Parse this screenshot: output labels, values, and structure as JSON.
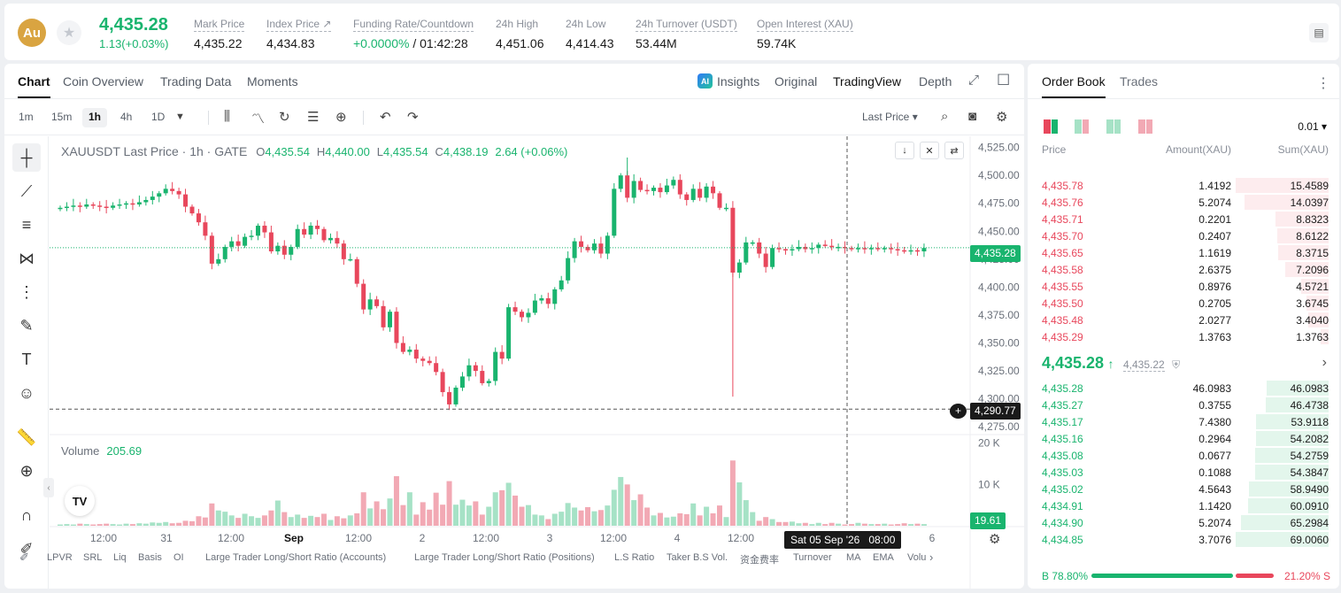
{
  "ticker": {
    "coin_badge": "Au",
    "last_price": "4,435.28",
    "change": "1.13(+0.03%)",
    "stats": [
      {
        "label": "Mark Price",
        "value": "4,435.22"
      },
      {
        "label": "Index Price ↗",
        "value": "4,434.83"
      },
      {
        "label": "Funding Rate/Countdown",
        "value_green": "+0.0000%",
        "value": " / 01:42:28"
      },
      {
        "label": "24h High",
        "value": "4,451.06"
      },
      {
        "label": "24h Low",
        "value": "4,414.43"
      },
      {
        "label": "24h Turnover (USDT)",
        "value": "53.44M"
      },
      {
        "label": "Open Interest (XAU)",
        "value": "59.74K"
      }
    ]
  },
  "chart_tabs": [
    "Chart",
    "Coin Overview",
    "Trading Data",
    "Moments"
  ],
  "view_tabs": {
    "insights": "Insights",
    "original": "Original",
    "tradingview": "TradingView",
    "depth": "Depth",
    "ai_badge": "AI"
  },
  "timeframes": [
    "1m",
    "15m",
    "1h",
    "4h",
    "1D"
  ],
  "price_source": "Last Price",
  "legend": {
    "title": "XAUUSDT Last Price · 1h · GATE",
    "o_label": "O",
    "o": "4,435.54",
    "h_label": "H",
    "h": "4,440.00",
    "l_label": "L",
    "l": "4,435.54",
    "c_label": "C",
    "c": "4,438.19",
    "change": "2.64 (+0.06%)"
  },
  "volume_legend": {
    "label": "Volume",
    "value": "205.69"
  },
  "price_chips": {
    "last": "4,435.28",
    "cursor": "4,290.77",
    "volume": "19.61"
  },
  "cursor_time": "Sat 05 Sep '26   08:00",
  "indicators": [
    "LPVR",
    "SRL",
    "Liq",
    "Basis",
    "OI",
    "Large Trader Long/Short Ratio (Accounts)",
    "Large Trader Long/Short Ratio (Positions)",
    "L.S Ratio",
    "Taker B.S Vol.",
    "资金费率",
    "Turnover",
    "MA",
    "EMA",
    "Volu"
  ],
  "chart_data": {
    "type": "candlestick",
    "symbol": "XAUUSDT",
    "interval": "1h",
    "y_ticks": [
      4525,
      4500,
      4475,
      4450,
      4425,
      4400,
      4375,
      4350,
      4325,
      4300,
      4275
    ],
    "y_tick_labels": [
      "4,525.00",
      "4,500.00",
      "4,475.00",
      "4,450.00",
      "4,425.00",
      "4,400.00",
      "4,375.00",
      "4,350.00",
      "4,325.00",
      "4,300.00",
      "4,275.00"
    ],
    "ylim": [
      4268,
      4535
    ],
    "volume_ticks": [
      "20 K",
      "10 K"
    ],
    "volume_tick_values": [
      20000,
      10000
    ],
    "x_tick_labels": [
      "12:00",
      "31",
      "12:00",
      "Sep",
      "12:00",
      "2",
      "12:00",
      "3",
      "12:00",
      "4",
      "12:00",
      "6"
    ],
    "last_price": 4435.28,
    "cursor_price": 4290.77,
    "closes": [
      4471,
      4472,
      4473,
      4472,
      4474,
      4473,
      4472,
      4471,
      4473,
      4474,
      4475,
      4474,
      4476,
      4478,
      4481,
      4484,
      4488,
      4486,
      4483,
      4472,
      4466,
      4458,
      4446,
      4421,
      4425,
      4436,
      4441,
      4437,
      4445,
      4446,
      4455,
      4449,
      4432,
      4437,
      4429,
      4436,
      4452,
      4447,
      4455,
      4452,
      4442,
      4444,
      4439,
      4425,
      4425,
      4403,
      4380,
      4389,
      4383,
      4364,
      4378,
      4350,
      4342,
      4344,
      4336,
      4334,
      4332,
      4324,
      4306,
      4295,
      4310,
      4320,
      4330,
      4325,
      4314,
      4316,
      4342,
      4336,
      4382,
      4378,
      4373,
      4377,
      4388,
      4390,
      4385,
      4398,
      4406,
      4426,
      4441,
      4436,
      4433,
      4439,
      4430,
      4446,
      4488,
      4500,
      4480,
      4495,
      4487,
      4486,
      4489,
      4485,
      4491,
      4496,
      4483,
      4478,
      4488,
      4480,
      4490,
      4484,
      4471,
      4471,
      4413,
      4422,
      4440,
      4440,
      4430,
      4418,
      4435,
      4434,
      4433,
      4434,
      4436,
      4434,
      4435,
      4438,
      4437,
      4436,
      4436,
      4435,
      4434,
      4435,
      4434,
      4435,
      4434,
      4435,
      4434,
      4433,
      4432,
      4433,
      4432,
      4435
    ],
    "volume": [
      0.3,
      0.4,
      0.3,
      0.5,
      0.4,
      0.3,
      0.4,
      0.5,
      0.4,
      0.3,
      0.5,
      0.4,
      0.6,
      0.5,
      0.8,
      0.7,
      0.9,
      0.6,
      0.7,
      1.2,
      1.1,
      2.3,
      2.0,
      5.4,
      3.7,
      3.4,
      2.5,
      1.9,
      2.9,
      2.3,
      1.9,
      2.5,
      3.7,
      6.1,
      3.3,
      2.1,
      2.7,
      1.9,
      2.4,
      2.1,
      2.9,
      1.4,
      2.3,
      1.8,
      2.5,
      3.0,
      8.1,
      4.2,
      5.9,
      4.0,
      6.6,
      12.0,
      5.0,
      8.1,
      2.7,
      5.7,
      3.9,
      8.0,
      5.1,
      10.8,
      5.1,
      6.3,
      4.9,
      5.9,
      2.7,
      4.6,
      8.1,
      8.6,
      10.4,
      7.3,
      4.6,
      5.0,
      2.7,
      2.5,
      1.6,
      2.9,
      3.4,
      5.5,
      4.4,
      3.7,
      4.5,
      3.5,
      3.8,
      4.9,
      8.7,
      11.8,
      10.0,
      6.2,
      7.6,
      4.4,
      2.5,
      3.1,
      2.0,
      2.2,
      3.0,
      2.8,
      5.4,
      2.5,
      4.6,
      3.0,
      4.9,
      2.1,
      15.8,
      10.5,
      6.2,
      3.3,
      1.2,
      2.1,
      1.6,
      0.9,
      0.9,
      1.0,
      0.6,
      0.7,
      0.4,
      0.7,
      0.4,
      0.7,
      0.5,
      0.3,
      0.4,
      0.7,
      0.5,
      0.4,
      0.4,
      0.5,
      0.3,
      0.4,
      0.6,
      0.4,
      0.5,
      0.4
    ]
  },
  "order_book": {
    "tabs": [
      "Order Book",
      "Trades"
    ],
    "precision": "0.01",
    "headers": {
      "price": "Price",
      "amount": "Amount(XAU)",
      "sum": "Sum(XAU)"
    },
    "asks": [
      {
        "price": "4,435.78",
        "amount": "1.4192",
        "sum": "15.4589"
      },
      {
        "price": "4,435.76",
        "amount": "5.2074",
        "sum": "14.0397"
      },
      {
        "price": "4,435.71",
        "amount": "0.2201",
        "sum": "8.8323"
      },
      {
        "price": "4,435.70",
        "amount": "0.2407",
        "sum": "8.6122"
      },
      {
        "price": "4,435.65",
        "amount": "1.1619",
        "sum": "8.3715"
      },
      {
        "price": "4,435.58",
        "amount": "2.6375",
        "sum": "7.2096"
      },
      {
        "price": "4,435.55",
        "amount": "0.8976",
        "sum": "4.5721"
      },
      {
        "price": "4,435.50",
        "amount": "0.2705",
        "sum": "3.6745"
      },
      {
        "price": "4,435.48",
        "amount": "2.0277",
        "sum": "3.4040"
      },
      {
        "price": "4,435.29",
        "amount": "1.3763",
        "sum": "1.3763"
      }
    ],
    "mid_price": "4,435.28",
    "mid_arrow": "↑",
    "mid_mark": "4,435.22",
    "bids": [
      {
        "price": "4,435.28",
        "amount": "46.0983",
        "sum": "46.0983"
      },
      {
        "price": "4,435.27",
        "amount": "0.3755",
        "sum": "46.4738"
      },
      {
        "price": "4,435.17",
        "amount": "7.4380",
        "sum": "53.9118"
      },
      {
        "price": "4,435.16",
        "amount": "0.2964",
        "sum": "54.2082"
      },
      {
        "price": "4,435.08",
        "amount": "0.0677",
        "sum": "54.2759"
      },
      {
        "price": "4,435.03",
        "amount": "0.1088",
        "sum": "54.3847"
      },
      {
        "price": "4,435.02",
        "amount": "4.5643",
        "sum": "58.9490"
      },
      {
        "price": "4,434.91",
        "amount": "1.1420",
        "sum": "60.0910"
      },
      {
        "price": "4,434.90",
        "amount": "5.2074",
        "sum": "65.2984"
      },
      {
        "price": "4,434.85",
        "amount": "3.7076",
        "sum": "69.0060"
      }
    ],
    "buy_ratio": "B 78.80%",
    "sell_ratio": "21.20% S",
    "buy_fraction": 0.788
  },
  "colors": {
    "up": "#19b46e",
    "down": "#e8475c",
    "up_vol": "#a6e2c6",
    "down_vol": "#f2a9b4"
  }
}
